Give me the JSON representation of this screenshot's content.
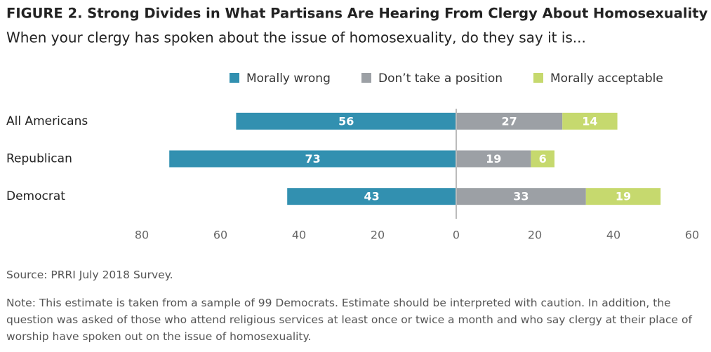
{
  "chart_data": {
    "type": "bar",
    "orientation": "horizontal",
    "stacked": true,
    "title": "FIGURE 2.  Strong Divides in What Partisans Are Hearing From Clergy About Homosexuality",
    "subtitle": "When your clergy has spoken about the issue of homosexuality, do they say it is...",
    "categories": [
      "All Americans",
      "Republican",
      "Democrat"
    ],
    "series": [
      {
        "name": "Morally wrong",
        "color": "#3290b0",
        "values": [
          -56,
          -73,
          -43
        ],
        "value_labels": [
          "56",
          "73",
          "43"
        ]
      },
      {
        "name": "Don’t take a position",
        "color": "#9ca0a5",
        "values": [
          27,
          19,
          33
        ]
      },
      {
        "name": "Morally acceptable",
        "color": "#c6d96e",
        "values": [
          14,
          6,
          19
        ]
      }
    ],
    "xlim": [
      -80,
      60
    ],
    "xticks": [
      {
        "value": -80,
        "label": "80"
      },
      {
        "value": -60,
        "label": "60"
      },
      {
        "value": -40,
        "label": "40"
      },
      {
        "value": -20,
        "label": "20"
      },
      0,
      20,
      40,
      60
    ],
    "legend": "top",
    "source": "Source: PRRI July 2018 Survey.",
    "note": "Note: This estimate is taken from a sample of 99 Democrats. Estimate should be interpreted with caution. In addition, the question was asked of those who attend religious services at least once or twice a month and who say clergy at their place of worship have spoken out on the issue of homosexuality."
  }
}
